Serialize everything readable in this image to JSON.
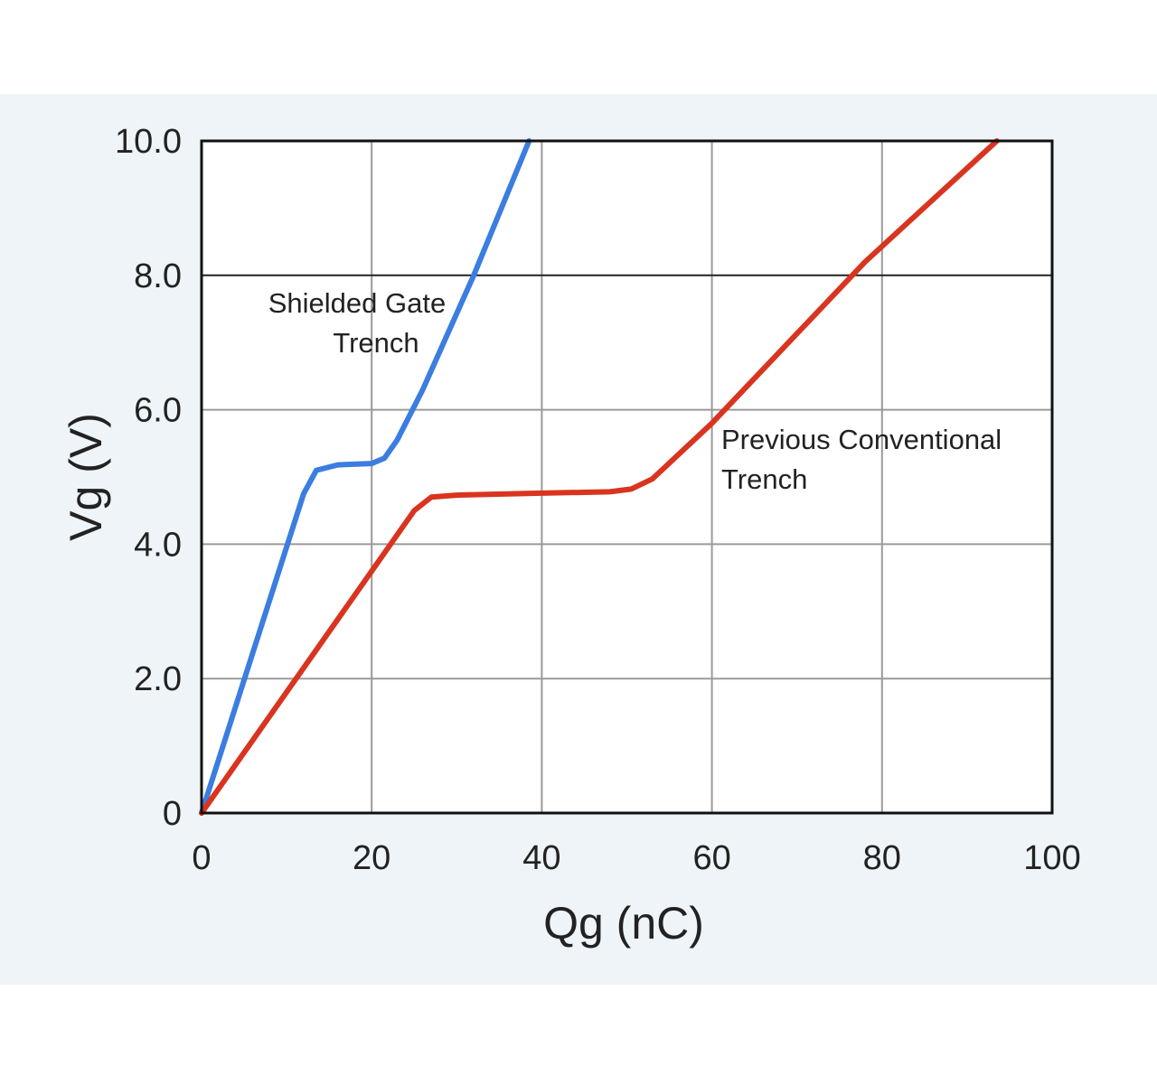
{
  "chart_data": {
    "type": "line",
    "xlabel": "Qg (nC)",
    "ylabel": "Vg (V)",
    "xlim": [
      0,
      100
    ],
    "ylim": [
      0,
      10
    ],
    "x_ticks": [
      "0",
      "20",
      "40",
      "60",
      "80",
      "100"
    ],
    "y_ticks": [
      "0",
      "2.0",
      "4.0",
      "6.0",
      "8.0",
      "10.0"
    ],
    "grid": true,
    "series": [
      {
        "name": "Shielded Gate Trench",
        "color": "#3b7de0",
        "points": [
          [
            0,
            0
          ],
          [
            12,
            4.75
          ],
          [
            13.5,
            5.1
          ],
          [
            16,
            5.18
          ],
          [
            20,
            5.2
          ],
          [
            21.5,
            5.28
          ],
          [
            23,
            5.55
          ],
          [
            26,
            6.3
          ],
          [
            32,
            8.0
          ],
          [
            38.5,
            10.0
          ]
        ]
      },
      {
        "name": "Previous Conventional Trench",
        "color": "#d9341f",
        "points": [
          [
            0,
            0
          ],
          [
            25,
            4.5
          ],
          [
            27,
            4.7
          ],
          [
            30,
            4.73
          ],
          [
            40,
            4.76
          ],
          [
            48,
            4.78
          ],
          [
            50.5,
            4.82
          ],
          [
            53,
            4.97
          ],
          [
            60,
            5.8
          ],
          [
            78,
            8.2
          ],
          [
            93.5,
            10.0
          ]
        ]
      }
    ],
    "annotations": [
      {
        "lines": [
          "Shielded Gate",
          "Trench"
        ]
      },
      {
        "lines": [
          "Previous Conventional",
          "Trench"
        ]
      }
    ]
  }
}
